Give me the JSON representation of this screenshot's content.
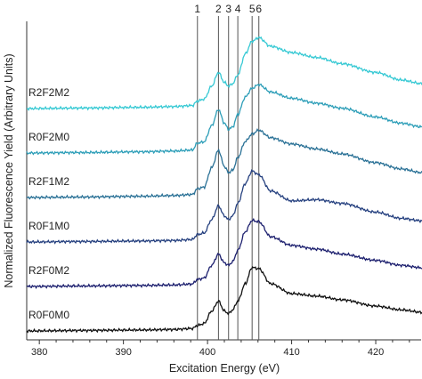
{
  "chart_data": {
    "type": "line",
    "xlabel": "Excitation Energy (eV)",
    "ylabel": "Normalized Fluorescence Yield (Arbitrary Units)",
    "xlim": [
      378.5,
      425.5
    ],
    "x_ticks": [
      380,
      390,
      400,
      410,
      420
    ],
    "x_tick_labels": [
      "380",
      "390",
      "400",
      "410",
      "420"
    ],
    "y_ticks_shown": false,
    "grid": false,
    "legend": "none (labels placed at left of each curve)",
    "vertical_lines": [
      {
        "label": "1",
        "x": 398.8
      },
      {
        "label": "2",
        "x": 401.3
      },
      {
        "label": "3",
        "x": 402.5
      },
      {
        "label": "4",
        "x": 403.6
      },
      {
        "label": "5",
        "x": 405.3
      },
      {
        "label": "6",
        "x": 406.1
      }
    ],
    "series": [
      {
        "name": "R2F2M2",
        "color": "#36c9d4",
        "offset": 5,
        "x": [
          378.5,
          385,
          392,
          396,
          398.2,
          398.8,
          399.6,
          400.5,
          401.3,
          402.0,
          402.5,
          403.0,
          403.6,
          404.5,
          405.3,
          406.1,
          407.5,
          410,
          413,
          416,
          420,
          423,
          425.5
        ],
        "y": [
          0.0,
          0.02,
          0.05,
          0.08,
          0.12,
          0.3,
          0.38,
          0.9,
          1.45,
          1.05,
          0.9,
          1.0,
          1.35,
          2.2,
          2.7,
          2.85,
          2.5,
          2.25,
          2.05,
          1.8,
          1.45,
          1.15,
          1.0
        ]
      },
      {
        "name": "R0F2M0",
        "color": "#2d9eb8",
        "offset": 4,
        "x": [
          378.5,
          385,
          392,
          396,
          398.2,
          398.8,
          399.6,
          400.5,
          401.3,
          402.0,
          402.5,
          403.0,
          403.6,
          404.5,
          405.3,
          406.1,
          407.5,
          410,
          413,
          416,
          420,
          423,
          425.5
        ],
        "y": [
          0.0,
          0.02,
          0.05,
          0.08,
          0.12,
          0.4,
          0.45,
          1.1,
          1.75,
          1.2,
          0.95,
          1.05,
          1.55,
          2.25,
          2.6,
          2.75,
          2.45,
          2.2,
          2.0,
          1.8,
          1.45,
          1.2,
          1.05
        ]
      },
      {
        "name": "R2F1M2",
        "color": "#2a7196",
        "offset": 3,
        "x": [
          378.5,
          385,
          392,
          396,
          398.2,
          398.8,
          399.6,
          400.5,
          401.3,
          402.0,
          402.5,
          403.0,
          403.6,
          404.5,
          405.3,
          406.1,
          407.5,
          410,
          413,
          416,
          420,
          423,
          425.5
        ],
        "y": [
          0.0,
          0.02,
          0.05,
          0.08,
          0.12,
          0.35,
          0.42,
          1.2,
          1.9,
          1.25,
          1.0,
          1.1,
          1.6,
          2.25,
          2.55,
          2.7,
          2.4,
          2.15,
          1.95,
          1.75,
          1.4,
          1.15,
          1.0
        ]
      },
      {
        "name": "R0F1M0",
        "color": "#25407f",
        "offset": 2,
        "x": [
          378.5,
          385,
          392,
          396,
          398.2,
          398.8,
          399.6,
          400.5,
          401.3,
          402.0,
          402.5,
          403.0,
          403.6,
          404.5,
          405.3,
          406.1,
          407.5,
          410,
          413,
          416,
          420,
          423,
          425.5
        ],
        "y": [
          0.0,
          0.02,
          0.04,
          0.06,
          0.1,
          0.3,
          0.36,
          0.9,
          1.45,
          1.05,
          0.9,
          1.05,
          1.55,
          2.35,
          2.85,
          2.7,
          2.05,
          1.65,
          1.7,
          1.55,
          1.2,
          0.95,
          0.85
        ]
      },
      {
        "name": "R2F0M2",
        "color": "#1c1f6e",
        "offset": 1,
        "x": [
          378.5,
          385,
          392,
          396,
          398.2,
          398.8,
          399.6,
          400.5,
          401.3,
          402.0,
          402.5,
          403.0,
          403.6,
          404.5,
          405.3,
          406.1,
          407.5,
          410,
          413,
          416,
          420,
          423,
          425.5
        ],
        "y": [
          0.0,
          0.02,
          0.04,
          0.06,
          0.1,
          0.28,
          0.34,
          0.85,
          1.3,
          0.95,
          0.85,
          1.0,
          1.45,
          2.2,
          2.65,
          2.6,
          2.0,
          1.65,
          1.5,
          1.3,
          1.05,
          0.85,
          0.75
        ]
      },
      {
        "name": "R0F0M0",
        "color": "#111111",
        "offset": 0,
        "x": [
          378.5,
          385,
          392,
          396,
          398.2,
          398.8,
          399.6,
          400.5,
          401.3,
          402.0,
          402.5,
          403.0,
          403.6,
          404.5,
          405.3,
          406.1,
          407.5,
          410,
          413,
          416,
          420,
          423,
          425.5
        ],
        "y": [
          0.0,
          0.02,
          0.04,
          0.06,
          0.1,
          0.22,
          0.3,
          0.8,
          1.2,
          0.8,
          0.7,
          0.85,
          1.2,
          1.9,
          2.55,
          2.5,
          1.9,
          1.5,
          1.4,
          1.25,
          1.0,
          0.85,
          0.75
        ]
      }
    ]
  }
}
